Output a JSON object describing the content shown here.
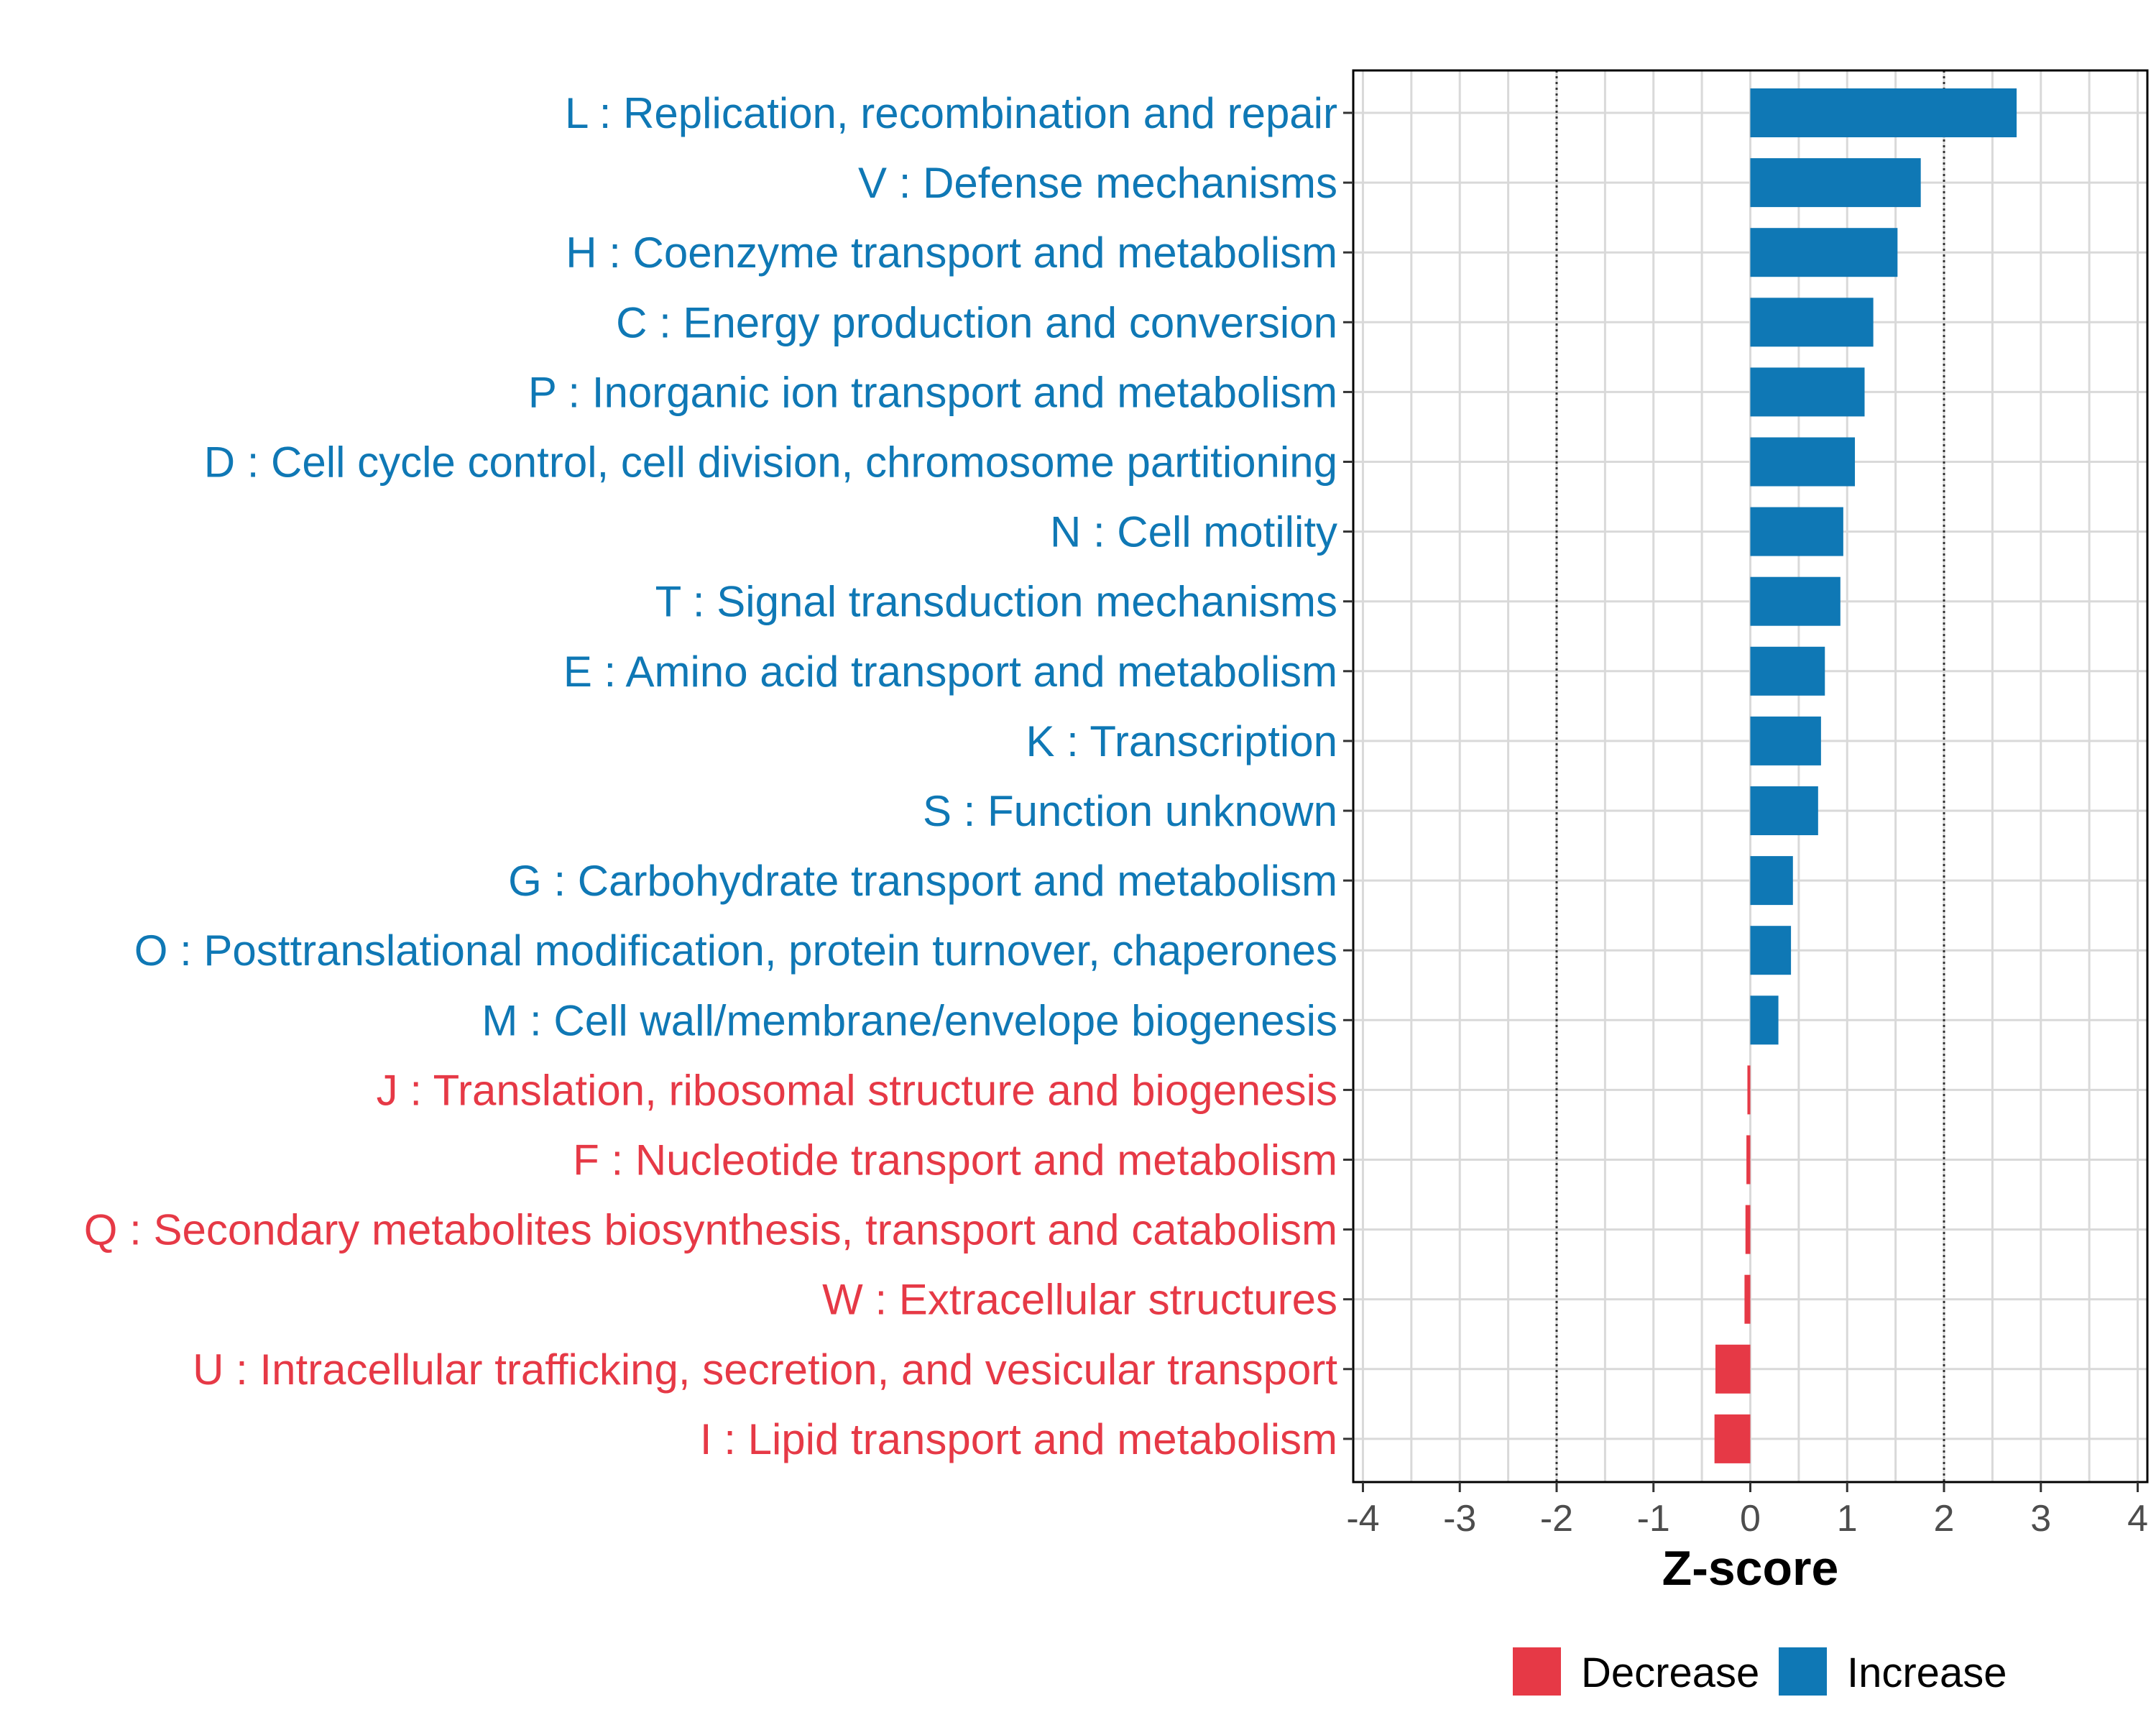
{
  "chart_data": {
    "type": "bar",
    "orientation": "horizontal",
    "xlabel": "Z-score",
    "xlim": [
      -4.1,
      4.1
    ],
    "xticks": [
      -4,
      -3,
      -2,
      -1,
      0,
      1,
      2,
      3,
      4
    ],
    "xtick_labels": [
      "-4",
      "-3",
      "-2",
      "-1",
      "0",
      "1",
      "2",
      "3",
      "4"
    ],
    "reference_lines": [
      -2,
      2
    ],
    "grid": true,
    "categories": [
      "L : Replication, recombination and repair",
      "V : Defense mechanisms",
      "H : Coenzyme transport and metabolism",
      "C : Energy production and conversion",
      "P : Inorganic ion transport and metabolism",
      "D : Cell cycle control, cell division, chromosome partitioning",
      "N : Cell motility",
      "T : Signal transduction mechanisms",
      "E : Amino acid transport and metabolism",
      "K : Transcription",
      "S : Function unknown",
      "G : Carbohydrate transport and metabolism",
      "O : Posttranslational modification, protein turnover, chaperones",
      "M : Cell wall/membrane/envelope biogenesis",
      "J : Translation, ribosomal structure and biogenesis",
      "F : Nucleotide transport and metabolism",
      "Q : Secondary metabolites biosynthesis, transport and catabolism",
      "W : Extracellular structures",
      "U : Intracellular trafficking, secretion, and vesicular transport",
      "I : Lipid transport and metabolism"
    ],
    "values": [
      2.75,
      1.76,
      1.52,
      1.27,
      1.18,
      1.08,
      0.96,
      0.93,
      0.77,
      0.73,
      0.7,
      0.44,
      0.42,
      0.29,
      -0.03,
      -0.04,
      -0.05,
      -0.06,
      -0.36,
      -0.37
    ],
    "groups": [
      "Increase",
      "Increase",
      "Increase",
      "Increase",
      "Increase",
      "Increase",
      "Increase",
      "Increase",
      "Increase",
      "Increase",
      "Increase",
      "Increase",
      "Increase",
      "Increase",
      "Decrease",
      "Decrease",
      "Decrease",
      "Decrease",
      "Decrease",
      "Decrease"
    ],
    "legend": {
      "position": "bottom",
      "items": [
        {
          "label": "Decrease",
          "color": "#E63946"
        },
        {
          "label": "Increase",
          "color": "#0F78B5"
        }
      ]
    },
    "colors": {
      "Increase": "#0F78B5",
      "Decrease": "#E63946"
    }
  }
}
